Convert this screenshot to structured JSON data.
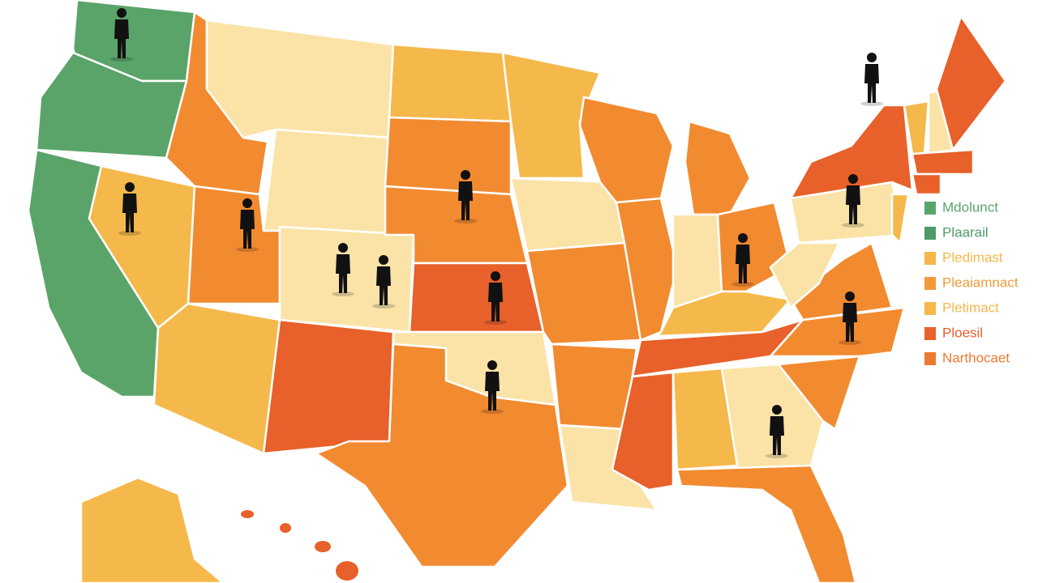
{
  "legend": {
    "items": [
      {
        "label": "Mdolunct",
        "color": "#5aa46a"
      },
      {
        "label": "Plaarail",
        "color": "#4f9a6a"
      },
      {
        "label": "Pledimast",
        "color": "#f5b84a"
      },
      {
        "label": "Pleaiamnact",
        "color": "#f29a3a"
      },
      {
        "label": "Pletimact",
        "color": "#f5b84a"
      },
      {
        "label": "Ploesil",
        "color": "#e8602a"
      },
      {
        "label": "Narthocaet",
        "color": "#ee7a32"
      }
    ]
  }
}
